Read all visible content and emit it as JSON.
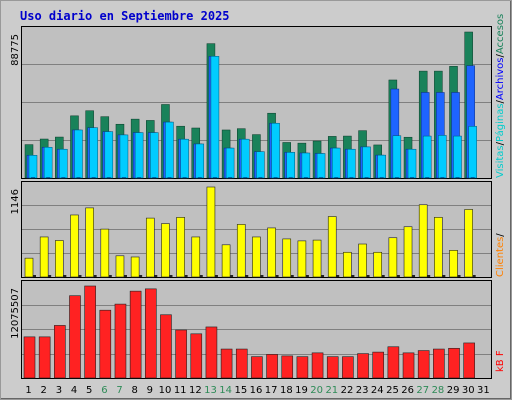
{
  "title": "Uso diario en Septiembre 2025",
  "colors": {
    "visitas": "#00ccff",
    "paginas": "#00ccff",
    "solicitudes": "#1e64ff",
    "accesos": "#19825a",
    "clientes": "#ffff00",
    "kbf": "#ff2222",
    "weekend_label": "#2e8b57",
    "weekday_label": "#000000",
    "side_clientes": "#ff8000",
    "side_visitas": "#00cccc",
    "side_archivos": "#0000ff",
    "side_accesos": "#19825a",
    "side_kbf": "#ff0000"
  },
  "side_labels": {
    "top": [
      {
        "text": "Visitas",
        "color": "#00cccc"
      },
      {
        "text": "/",
        "color": "#000000"
      },
      {
        "text": "Páginas",
        "color": "#00cccc"
      },
      {
        "text": "/",
        "color": "#000000"
      },
      {
        "text": "Archivos",
        "color": "#0000ff"
      },
      {
        "text": "/",
        "color": "#000000"
      },
      {
        "text": "Accesos",
        "color": "#19825a"
      }
    ],
    "middle": [
      {
        "text": "Clientes",
        "color": "#ff8000"
      },
      {
        "text": "/",
        "color": "#000000"
      }
    ],
    "bottom": [
      {
        "text": "kB F",
        "color": "#ff0000"
      }
    ]
  },
  "chart_data": [
    {
      "type": "bar",
      "panel": "accesos",
      "ymax_label": "88775",
      "ylim": [
        0,
        88775
      ],
      "categories": [
        "1",
        "2",
        "3",
        "4",
        "5",
        "6",
        "7",
        "8",
        "9",
        "10",
        "11",
        "12",
        "13",
        "14",
        "15",
        "16",
        "17",
        "18",
        "19",
        "20",
        "21",
        "22",
        "23",
        "24",
        "25",
        "26",
        "27",
        "28",
        "29",
        "30",
        "31"
      ],
      "weekend_days": [
        "6",
        "7",
        "13",
        "14",
        "20",
        "21",
        "27",
        "28"
      ],
      "series": [
        {
          "key": "accesos",
          "values": [
            20300,
            23700,
            24900,
            37800,
            40900,
            37300,
            32700,
            35800,
            35000,
            44700,
            31500,
            30400,
            81700,
            29200,
            30000,
            26400,
            39400,
            21600,
            21200,
            22500,
            25300,
            25500,
            28800,
            20100,
            59600,
            24800,
            65000,
            65000,
            67900,
            88775,
            0
          ]
        },
        {
          "key": "solicitudes",
          "values": [
            13800,
            18700,
            17500,
            29200,
            30600,
            28200,
            26200,
            27600,
            27600,
            34000,
            23600,
            20700,
            74000,
            18200,
            23600,
            16000,
            33300,
            15600,
            15200,
            14900,
            18200,
            17500,
            18900,
            13900,
            54100,
            17500,
            52000,
            52000,
            52000,
            68300,
            0
          ]
        },
        {
          "key": "paginas",
          "values": [
            13800,
            18700,
            17500,
            29200,
            30600,
            28200,
            26200,
            27600,
            27600,
            34000,
            23600,
            20700,
            74000,
            18200,
            23600,
            16000,
            33300,
            15600,
            15200,
            14900,
            18200,
            17500,
            18900,
            13900,
            25700,
            17500,
            25500,
            25900,
            25500,
            31400,
            0
          ]
        },
        {
          "key": "visitas",
          "values": [
            600,
            600,
            600,
            600,
            600,
            600,
            600,
            600,
            600,
            600,
            600,
            600,
            600,
            600,
            600,
            600,
            600,
            600,
            600,
            600,
            600,
            600,
            600,
            600,
            600,
            600,
            600,
            600,
            600,
            600,
            0
          ]
        }
      ]
    },
    {
      "type": "bar",
      "panel": "clientes",
      "ymax_label": "1146",
      "ylim": [
        0,
        1146
      ],
      "categories": [
        "1",
        "2",
        "3",
        "4",
        "5",
        "6",
        "7",
        "8",
        "9",
        "10",
        "11",
        "12",
        "13",
        "14",
        "15",
        "16",
        "17",
        "18",
        "19",
        "20",
        "21",
        "22",
        "23",
        "24",
        "25",
        "26",
        "27",
        "28",
        "29",
        "30",
        "31"
      ],
      "series": [
        {
          "key": "clientes",
          "values": [
            240,
            510,
            465,
            790,
            880,
            610,
            270,
            255,
            750,
            680,
            760,
            510,
            1146,
            410,
            670,
            510,
            625,
            485,
            460,
            470,
            770,
            315,
            420,
            315,
            500,
            640,
            920,
            760,
            340,
            860,
            0
          ]
        }
      ]
    },
    {
      "type": "bar",
      "panel": "kbf",
      "ymax_label": "12075507",
      "ylim": [
        0,
        12075507
      ],
      "categories": [
        "1",
        "2",
        "3",
        "4",
        "5",
        "6",
        "7",
        "8",
        "9",
        "10",
        "11",
        "12",
        "13",
        "14",
        "15",
        "16",
        "17",
        "18",
        "19",
        "20",
        "21",
        "22",
        "23",
        "24",
        "25",
        "26",
        "27",
        "28",
        "29",
        "30",
        "31"
      ],
      "series": [
        {
          "key": "kbf",
          "values": [
            5400000,
            5400000,
            6900000,
            10800000,
            12075507,
            8900000,
            9700000,
            11400000,
            11700000,
            8300000,
            6300000,
            5800000,
            6700000,
            3800000,
            3800000,
            2800000,
            3100000,
            2900000,
            2800000,
            3300000,
            2800000,
            2800000,
            3200000,
            3400000,
            4100000,
            3300000,
            3600000,
            3800000,
            3900000,
            4600000,
            0
          ]
        }
      ]
    }
  ]
}
